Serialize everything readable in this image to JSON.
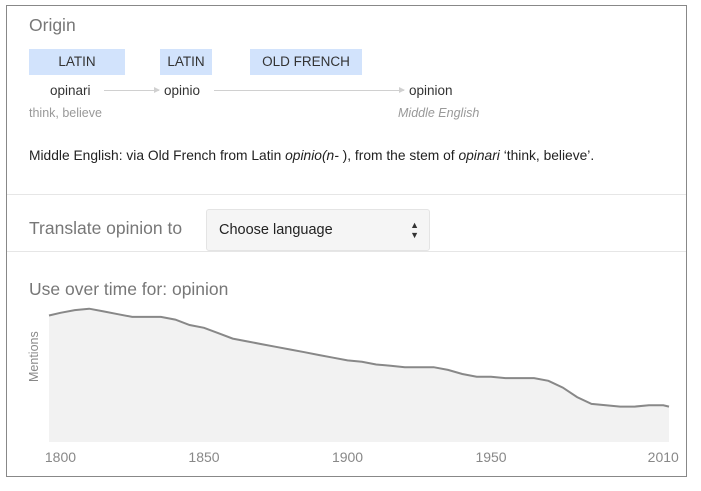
{
  "origin": {
    "heading": "Origin",
    "languages": [
      "LATIN",
      "LATIN",
      "OLD FRENCH"
    ],
    "words": [
      {
        "word": "opinari",
        "gloss": "think, believe"
      },
      {
        "word": "opinio",
        "gloss": ""
      },
      {
        "word": "opinion",
        "gloss": "Middle English"
      }
    ],
    "text": {
      "p1": "Middle English: via Old French from Latin ",
      "em1": "opinio(n- ",
      "p2": "), from the stem of ",
      "em2": "opinari",
      "p3": " ‘think, believe’."
    }
  },
  "translate": {
    "label": "Translate opinion to",
    "select_value": "Choose language"
  },
  "usage": {
    "heading": "Use over time for: opinion"
  },
  "chart_data": {
    "type": "area",
    "ylabel": "Mentions",
    "xlabel": "",
    "x_ticks": [
      1800,
      1850,
      1900,
      1950,
      2010
    ],
    "xlim": [
      1796,
      2012
    ],
    "ylim": [
      0,
      100
    ],
    "grid": false,
    "line_color": "#888888",
    "fill_color": "#f2f2f2",
    "x": [
      1796,
      1800,
      1805,
      1810,
      1815,
      1820,
      1825,
      1830,
      1835,
      1840,
      1845,
      1850,
      1855,
      1860,
      1865,
      1870,
      1875,
      1880,
      1885,
      1890,
      1895,
      1900,
      1905,
      1910,
      1915,
      1920,
      1925,
      1930,
      1935,
      1940,
      1945,
      1950,
      1955,
      1960,
      1965,
      1970,
      1975,
      1980,
      1985,
      1990,
      1995,
      2000,
      2005,
      2010,
      2012
    ],
    "values": [
      93,
      95,
      97,
      98,
      96,
      94,
      92,
      92,
      92,
      90,
      86,
      84,
      80,
      76,
      74,
      72,
      70,
      68,
      66,
      64,
      62,
      60,
      59,
      57,
      56,
      55,
      55,
      55,
      53,
      50,
      48,
      48,
      47,
      47,
      47,
      45,
      40,
      33,
      28,
      27,
      26,
      26,
      27,
      27,
      26
    ]
  }
}
